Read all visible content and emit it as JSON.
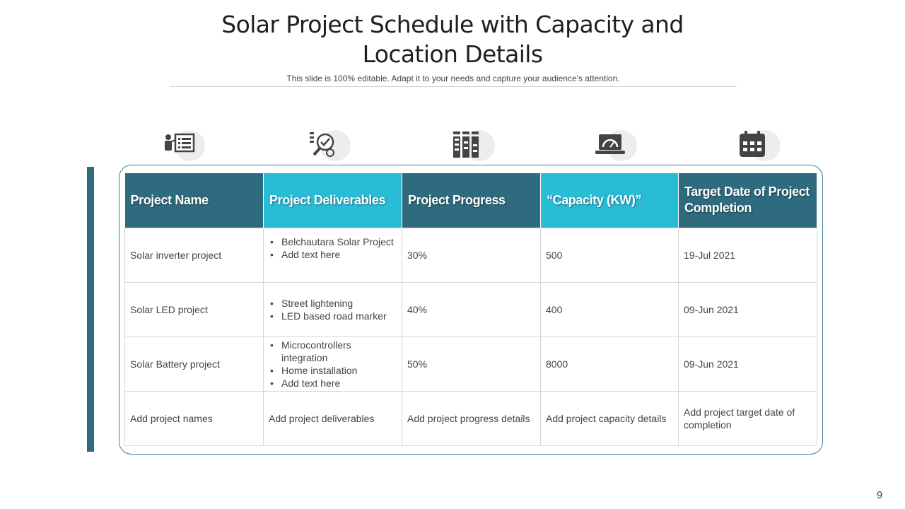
{
  "slide": {
    "title_line1": "Solar Project Schedule with Capacity and",
    "title_line2": "Location Details",
    "subtitle": "This slide is 100% editable. Adapt it to your needs and capture your audience's attention.",
    "page_number": "9"
  },
  "colors": {
    "dark_teal": "#2f6b7e",
    "cyan": "#29bcd6",
    "frame_border": "#3f7fa1"
  },
  "icons": [
    "presentation-board-icon",
    "checklist-magnifier-icon",
    "bar-grid-icon",
    "laptop-gauge-icon",
    "calendar-icon"
  ],
  "table": {
    "headers": [
      "Project Name",
      "Project Deliverables",
      "Project Progress",
      "“Capacity (KW)”",
      "Target Date of Project Completion"
    ],
    "rows": [
      {
        "name": "Solar inverter project",
        "deliverables": [
          "Belchautara Solar Project",
          "Add text here"
        ],
        "progress": "30%",
        "capacity": "500",
        "target_date": "19-Jul 2021"
      },
      {
        "name": "Solar LED project",
        "deliverables": [
          "Street lightening",
          "LED based road marker"
        ],
        "progress": "40%",
        "capacity": "400",
        "target_date": "09-Jun 2021"
      },
      {
        "name": "Solar Battery project",
        "deliverables": [
          "Microcontrollers integration",
          "Home installation",
          "Add text here"
        ],
        "progress": "50%",
        "capacity": "8000",
        "target_date": "09-Jun 2021"
      },
      {
        "name": "Add project names",
        "deliverables_text": "Add project deliverables",
        "progress": "Add project progress details",
        "capacity": "Add project capacity details",
        "target_date": "Add project target date of completion"
      }
    ]
  }
}
